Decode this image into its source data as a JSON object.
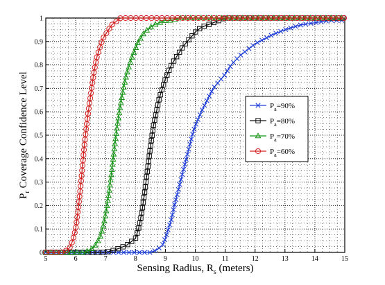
{
  "chart_data": {
    "type": "line",
    "title": "",
    "xlabel": "Sensing Radius, R",
    "xlabel_sub": "s",
    "xlabel_suffix": " (meters)",
    "ylabel": "P",
    "ylabel_sub": "r",
    "ylabel_suffix": " Coverage Confidence Level",
    "xlim": [
      5,
      15
    ],
    "ylim": [
      0,
      1
    ],
    "xticks": [
      "5",
      "6",
      "7",
      "8",
      "9",
      "10",
      "11",
      "12",
      "13",
      "14",
      "15"
    ],
    "yticks": [
      "0",
      "0.1",
      "0.2",
      "0.3",
      "0.4",
      "0.5",
      "0.6",
      "0.7",
      "0.8",
      "0.9",
      "1"
    ],
    "grid": true,
    "legend_position": "right-middle",
    "series": [
      {
        "name": "P",
        "name_sub": "a",
        "name_suffix": "=90%",
        "color": "#1f3fd8",
        "marker": "x",
        "x": [
          5.0,
          8.0,
          8.5,
          8.7,
          8.9,
          9.0,
          9.1,
          9.2,
          9.3,
          9.4,
          9.5,
          9.6,
          9.7,
          9.8,
          9.9,
          10.0,
          10.2,
          10.4,
          10.6,
          10.8,
          11.0,
          11.2,
          11.5,
          11.8,
          12.0,
          12.3,
          12.6,
          13.0,
          13.5,
          14.0,
          14.5,
          15.0
        ],
        "y": [
          0.0,
          0.0,
          0.0,
          0.01,
          0.03,
          0.06,
          0.1,
          0.14,
          0.2,
          0.25,
          0.3,
          0.35,
          0.4,
          0.45,
          0.5,
          0.54,
          0.6,
          0.65,
          0.7,
          0.73,
          0.76,
          0.8,
          0.84,
          0.87,
          0.89,
          0.91,
          0.93,
          0.95,
          0.97,
          0.98,
          0.99,
          0.99
        ]
      },
      {
        "name": "P",
        "name_sub": "a",
        "name_suffix": "=80%",
        "color": "#111111",
        "marker": "square",
        "x": [
          5.0,
          7.0,
          7.3,
          7.5,
          7.7,
          7.9,
          8.0,
          8.1,
          8.2,
          8.3,
          8.4,
          8.5,
          8.6,
          8.7,
          8.8,
          8.9,
          9.0,
          9.1,
          9.2,
          9.4,
          9.6,
          9.8,
          10.0,
          10.2,
          10.4,
          10.6,
          10.8,
          11.0,
          11.5,
          12.0,
          13.0,
          14.0,
          15.0
        ],
        "y": [
          0.0,
          0.0,
          0.01,
          0.02,
          0.03,
          0.05,
          0.06,
          0.1,
          0.16,
          0.25,
          0.35,
          0.45,
          0.54,
          0.6,
          0.66,
          0.7,
          0.74,
          0.77,
          0.8,
          0.84,
          0.88,
          0.91,
          0.94,
          0.96,
          0.97,
          0.98,
          0.99,
          1.0,
          1.0,
          1.0,
          1.0,
          1.0,
          1.0
        ]
      },
      {
        "name": "P",
        "name_sub": "a",
        "name_suffix": "=70%",
        "color": "#169416",
        "marker": "triangle",
        "x": [
          5.0,
          6.3,
          6.6,
          6.8,
          6.9,
          7.0,
          7.1,
          7.2,
          7.3,
          7.4,
          7.5,
          7.6,
          7.7,
          7.8,
          7.9,
          8.0,
          8.1,
          8.2,
          8.3,
          8.4,
          8.6,
          8.8,
          9.0,
          9.2,
          9.5,
          10.0,
          11.0,
          12.0,
          13.0,
          14.0,
          15.0
        ],
        "y": [
          0.0,
          0.0,
          0.02,
          0.06,
          0.1,
          0.16,
          0.24,
          0.34,
          0.45,
          0.55,
          0.63,
          0.7,
          0.76,
          0.8,
          0.84,
          0.87,
          0.9,
          0.92,
          0.94,
          0.95,
          0.97,
          0.98,
          0.99,
          0.99,
          1.0,
          1.0,
          1.0,
          1.0,
          1.0,
          1.0,
          1.0
        ]
      },
      {
        "name": "P",
        "name_sub": "a",
        "name_suffix": "=60%",
        "color": "#d42020",
        "marker": "circle",
        "x": [
          5.0,
          5.6,
          5.8,
          5.9,
          6.0,
          6.1,
          6.2,
          6.3,
          6.4,
          6.5,
          6.6,
          6.7,
          6.8,
          6.9,
          7.0,
          7.1,
          7.2,
          7.3,
          7.4,
          7.5,
          7.7,
          8.0,
          8.5,
          9.0,
          10.0,
          11.0,
          12.0,
          13.0,
          14.0,
          15.0
        ],
        "y": [
          0.0,
          0.0,
          0.02,
          0.05,
          0.1,
          0.2,
          0.33,
          0.47,
          0.58,
          0.67,
          0.76,
          0.83,
          0.87,
          0.91,
          0.93,
          0.95,
          0.97,
          0.98,
          0.99,
          1.0,
          1.0,
          1.0,
          1.0,
          1.0,
          1.0,
          1.0,
          1.0,
          1.0,
          1.0,
          1.0
        ]
      }
    ]
  }
}
